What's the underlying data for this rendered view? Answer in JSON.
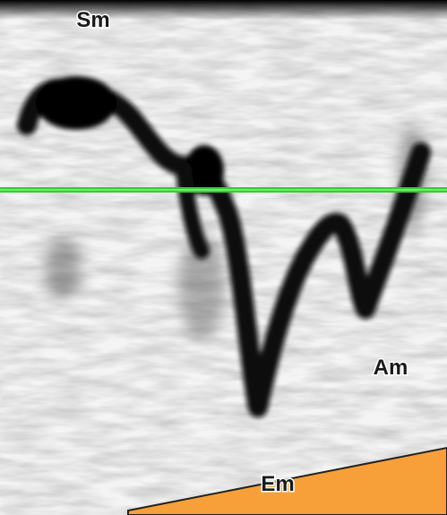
{
  "labels": {
    "sm": "Sm",
    "am": "Am",
    "em": "Em"
  }
}
